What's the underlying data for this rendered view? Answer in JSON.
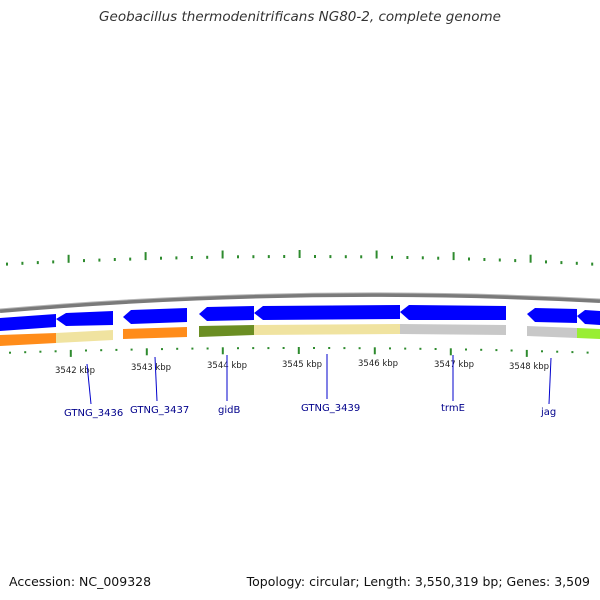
{
  "title": "Geobacillus thermodenitrificans NG80-2, complete genome",
  "accession_label": "Accession: NC_009328",
  "summary_label": "Topology: circular; Length: 3,550,319 bp; Genes: 3,509",
  "colors": {
    "backbone": "#8c8c8c",
    "tick": "#2e8b2e",
    "gene_strand": "#0000ff",
    "label": "#00008b",
    "scale_text": "#222222"
  },
  "scale_labels": [
    "3542 kbp",
    "3543 kbp",
    "3544 kbp",
    "3545 kbp",
    "3546 kbp",
    "3547 kbp",
    "3548 kbp"
  ],
  "genes": [
    {
      "name": "GTNG_3436"
    },
    {
      "name": "GTNG_3437"
    },
    {
      "name": "gidB"
    },
    {
      "name": "GTNG_3439"
    },
    {
      "name": "trmE"
    },
    {
      "name": "jag"
    }
  ]
}
